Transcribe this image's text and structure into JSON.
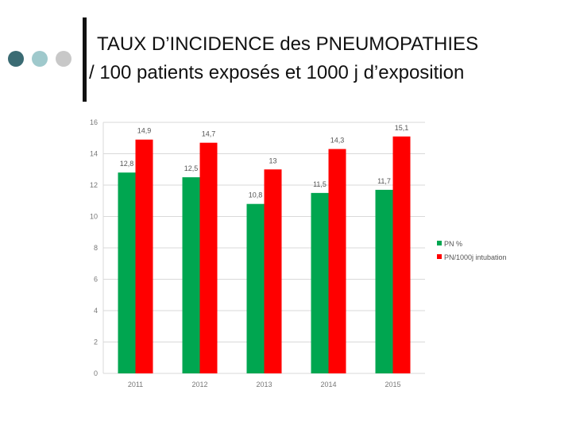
{
  "title": {
    "line1": "TAUX D’INCIDENCE des PNEUMOPATHIES",
    "line2": "/ 100 patients exposés et 1000 j d’exposition"
  },
  "colors": {
    "dot1": "#3a6b73",
    "dot2": "#9fc9cc",
    "dot3": "#c8c8c8",
    "series1": "#00a650",
    "series2": "#ff0000",
    "grid": "#d9d9d9"
  },
  "chart_data": {
    "type": "bar",
    "categories": [
      "2011",
      "2012",
      "2013",
      "2014",
      "2015"
    ],
    "series": [
      {
        "name": "PN %",
        "values": [
          12.8,
          12.5,
          10.8,
          11.5,
          11.7
        ],
        "labels": [
          "12,8",
          "12,5",
          "10,8",
          "11,5",
          "11,7"
        ]
      },
      {
        "name": "PN/1000j intubation",
        "values": [
          14.9,
          14.7,
          13,
          14.3,
          15.1
        ],
        "labels": [
          "14,9",
          "14,7",
          "13",
          "14,3",
          "15,1"
        ]
      }
    ],
    "ylim": [
      0,
      16
    ],
    "yticks": [
      "0",
      "2",
      "4",
      "6",
      "8",
      "10",
      "12",
      "14",
      "16"
    ],
    "grid": true,
    "legend": "right"
  }
}
